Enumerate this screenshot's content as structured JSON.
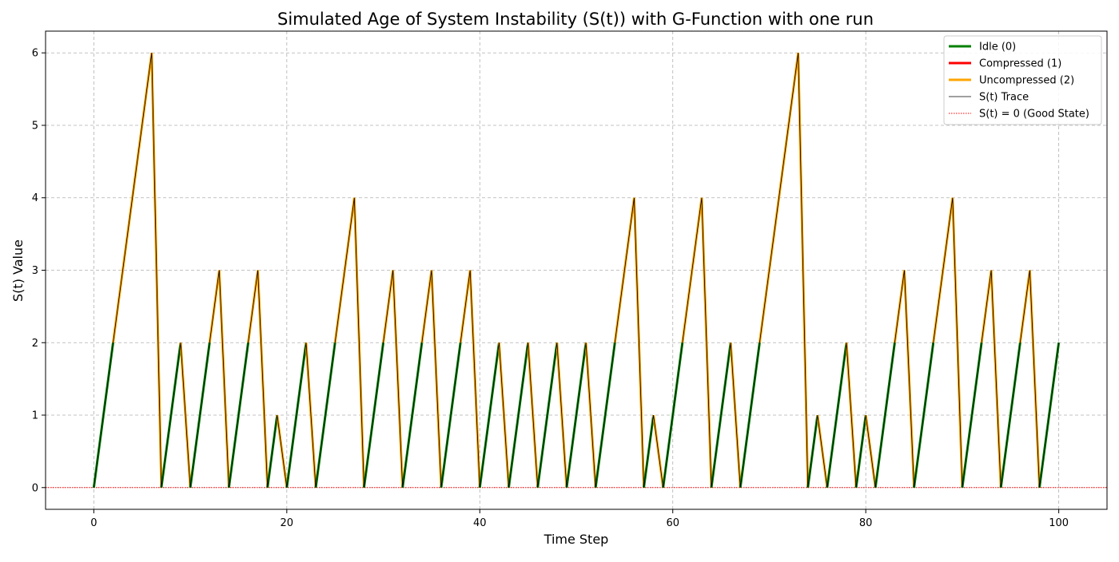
{
  "chart_data": {
    "type": "line",
    "title": "Simulated Age of System Instability (S(t)) with G-Function with one run",
    "xlabel": "Time Step",
    "ylabel": "S(t) Value",
    "xlim": [
      -5,
      105
    ],
    "ylim": [
      -0.3,
      6.3
    ],
    "x_ticks": [
      0,
      20,
      40,
      60,
      80,
      100
    ],
    "y_ticks": [
      0,
      1,
      2,
      3,
      4,
      5,
      6
    ],
    "grid": true,
    "legend_position": "top-right",
    "x": [
      0,
      1,
      2,
      3,
      4,
      5,
      6,
      7,
      8,
      9,
      10,
      11,
      12,
      13,
      14,
      15,
      16,
      17,
      18,
      19,
      20,
      21,
      22,
      23,
      24,
      25,
      26,
      27,
      28,
      29,
      30,
      31,
      32,
      33,
      34,
      35,
      36,
      37,
      38,
      39,
      40,
      41,
      42,
      43,
      44,
      45,
      46,
      47,
      48,
      49,
      50,
      51,
      52,
      53,
      54,
      55,
      56,
      57,
      58,
      59,
      60,
      61,
      62,
      63,
      64,
      65,
      66,
      67,
      68,
      69,
      70,
      71,
      72,
      73,
      74,
      75,
      76,
      77,
      78,
      79,
      80,
      81,
      82,
      83,
      84,
      85,
      86,
      87,
      88,
      89,
      90,
      91,
      92,
      93,
      94,
      95,
      96,
      97,
      98,
      99,
      100
    ],
    "values": [
      0,
      1,
      2,
      3,
      4,
      5,
      6,
      0,
      1,
      2,
      0,
      1,
      2,
      3,
      0,
      1,
      2,
      3,
      0,
      1,
      0,
      1,
      2,
      0,
      1,
      2,
      3,
      4,
      0,
      1,
      2,
      3,
      0,
      1,
      2,
      3,
      0,
      1,
      2,
      3,
      0,
      1,
      2,
      0,
      1,
      2,
      0,
      1,
      2,
      0,
      1,
      2,
      0,
      1,
      2,
      3,
      4,
      0,
      1,
      0,
      1,
      2,
      3,
      4,
      0,
      1,
      2,
      0,
      1,
      2,
      3,
      4,
      5,
      6,
      0,
      1,
      0,
      1,
      2,
      0,
      1,
      0,
      1,
      2,
      3,
      0,
      1,
      2,
      3,
      4,
      0,
      1,
      2,
      3,
      0,
      1,
      2,
      3,
      0,
      1,
      2
    ],
    "series": [
      {
        "name": "Idle (0)",
        "color": "#008000"
      },
      {
        "name": "Compressed (1)",
        "color": "#ff0000"
      },
      {
        "name": "Uncompressed (2)",
        "color": "#ffa500"
      },
      {
        "name": "S(t) Trace",
        "color": "#000000"
      },
      {
        "name": "S(t) = 0 (Good State)",
        "color": "#ff0000",
        "value": 0
      }
    ]
  }
}
